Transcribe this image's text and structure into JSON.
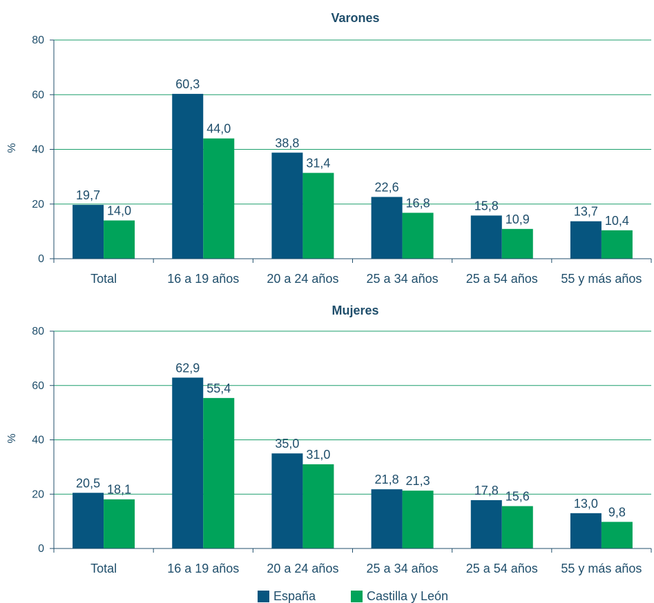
{
  "colors": {
    "espana": "#06557f",
    "castilla": "#00a35a",
    "grid": "#1a9e6a",
    "axis": "#1f4e6b",
    "text": "#1f4e6b"
  },
  "legend": {
    "items": [
      {
        "name": "España",
        "color": "#06557f"
      },
      {
        "name": "Castilla y León",
        "color": "#00a35a"
      }
    ],
    "placement": "bottom-center"
  },
  "chart_data": [
    {
      "type": "bar",
      "title": "Varones",
      "ylabel": "%",
      "xlabel": "",
      "ylim": [
        0,
        80
      ],
      "yticks": [
        0,
        20,
        40,
        60,
        80
      ],
      "grid": true,
      "categories": [
        "Total",
        "16 a 19 años",
        "20 a 24 años",
        "25 a 34 años",
        "25 a 54 años",
        "55 y más años"
      ],
      "series": [
        {
          "name": "España",
          "values": [
            19.7,
            60.3,
            38.8,
            22.6,
            15.8,
            13.7
          ],
          "labels": [
            "19,7",
            "60,3",
            "38,8",
            "22,6",
            "15,8",
            "13,7"
          ]
        },
        {
          "name": "Castilla y León",
          "values": [
            14.0,
            44.0,
            31.4,
            16.8,
            10.9,
            10.4
          ],
          "labels": [
            "14,0",
            "44,0",
            "31,4",
            "16,8",
            "10,9",
            "10,4"
          ]
        }
      ]
    },
    {
      "type": "bar",
      "title": "Mujeres",
      "ylabel": "%",
      "xlabel": "",
      "ylim": [
        0,
        80
      ],
      "yticks": [
        0,
        20,
        40,
        60,
        80
      ],
      "grid": true,
      "categories": [
        "Total",
        "16 a 19 años",
        "20 a 24 años",
        "25 a 34 años",
        "25 a 54 años",
        "55 y más años"
      ],
      "series": [
        {
          "name": "España",
          "values": [
            20.5,
            62.9,
            35.0,
            21.8,
            17.8,
            13.0
          ],
          "labels": [
            "20,5",
            "62,9",
            "35,0",
            "21,8",
            "17,8",
            "13,0"
          ]
        },
        {
          "name": "Castilla y León",
          "values": [
            18.1,
            55.4,
            31.0,
            21.3,
            15.6,
            9.8
          ],
          "labels": [
            "18,1",
            "55,4",
            "31,0",
            "21,3",
            "15,6",
            "9,8"
          ]
        }
      ]
    }
  ]
}
